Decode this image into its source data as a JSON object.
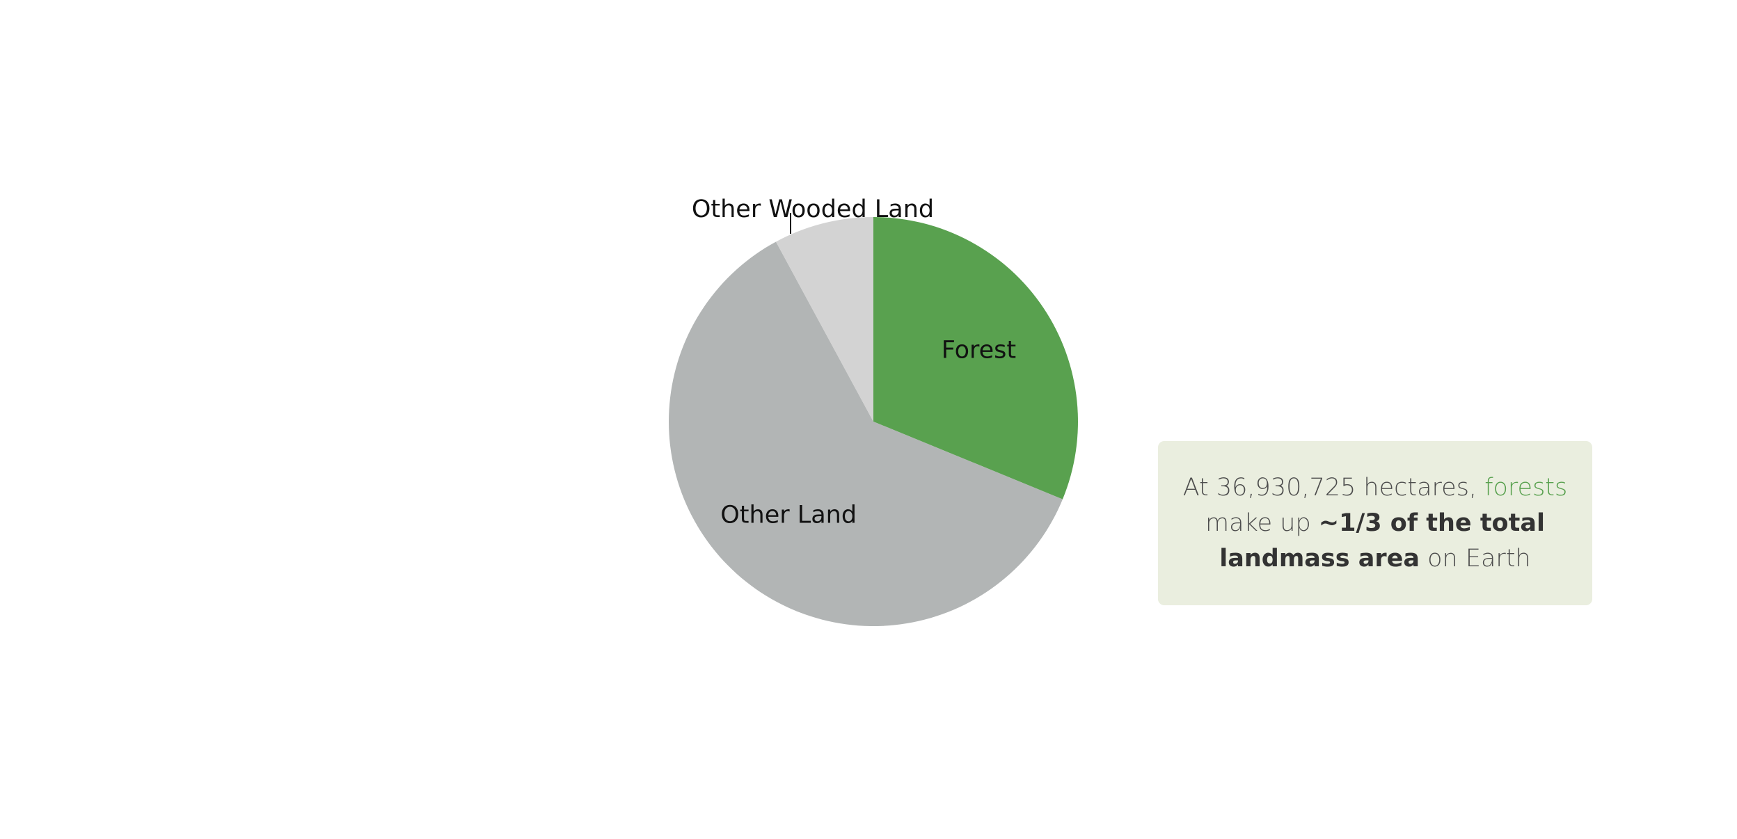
{
  "chart_data": {
    "type": "pie",
    "slices": [
      {
        "label": "Forest",
        "value": 31.2,
        "color": "#59a14f"
      },
      {
        "label": "Other Land",
        "value": 60.9,
        "color": "#b2b5b5"
      },
      {
        "label": "Other Wooded Land",
        "value": 7.9,
        "color": "#d3d3d3"
      }
    ],
    "start_angle": "12 o'clock",
    "direction": "clockwise"
  },
  "callout": {
    "prefix": "At 36,930,725 hectares, ",
    "forests_word": "forests",
    "line2_start": "make up  ",
    "bold_phrase_1": "~1/3 of the total",
    "bold_phrase_2": "landmass area",
    "suffix": " on Earth",
    "accent_color": "#59a14f",
    "background_color": "#eaeedf"
  }
}
